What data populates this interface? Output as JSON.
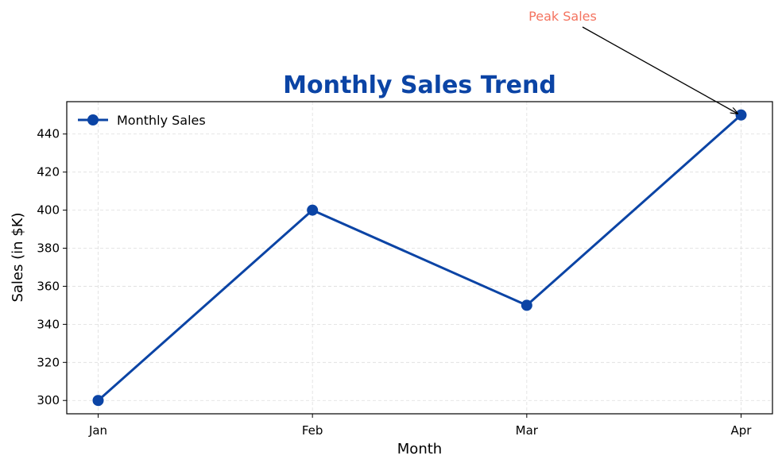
{
  "chart_data": {
    "type": "line",
    "title": "Monthly Sales Trend",
    "xlabel": "Month",
    "ylabel": "Sales (in $K)",
    "categories": [
      "Jan",
      "Feb",
      "Mar",
      "Apr"
    ],
    "series": [
      {
        "name": "Monthly Sales",
        "values": [
          300,
          400,
          350,
          450
        ]
      }
    ],
    "ylim": [
      293,
      457
    ],
    "yticks": [
      300,
      320,
      340,
      360,
      380,
      400,
      420,
      440
    ],
    "grid": true,
    "legend_position": "top-left",
    "annotation": {
      "text": "Peak Sales",
      "category": "Apr",
      "value": 450
    },
    "colors": {
      "line": "#0b44a5",
      "title": "#0b44a5",
      "annotation_text": "#f4735f",
      "grid": "#dddddd"
    }
  }
}
